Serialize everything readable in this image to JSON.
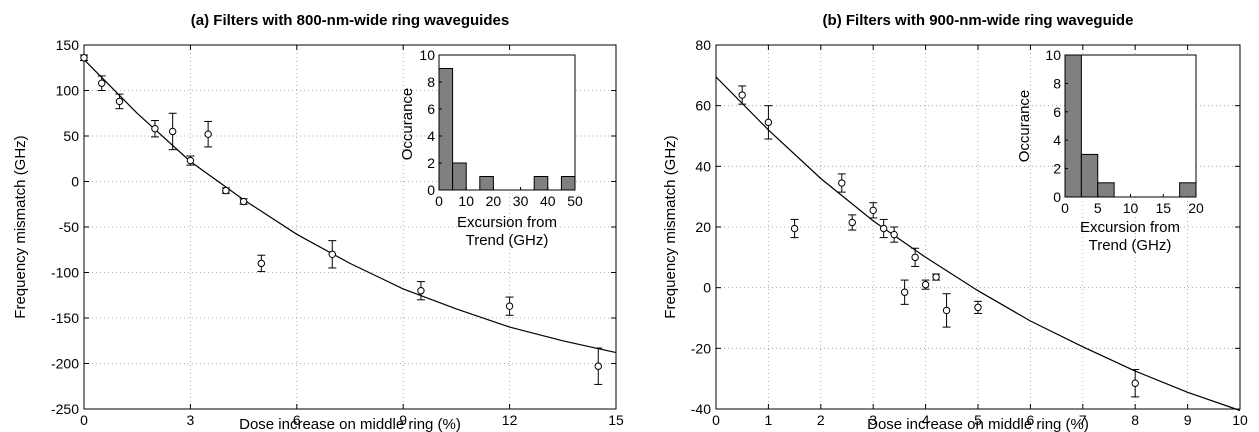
{
  "chart_data": [
    {
      "type": "scatter",
      "title": "(a) Filters with 800-nm-wide ring waveguides",
      "xlabel": "Dose increase on middle ring (%)",
      "ylabel": "Frequency mismatch (GHz)",
      "xlim": [
        0,
        15
      ],
      "ylim": [
        -250,
        150
      ],
      "xticks": [
        0,
        3,
        6,
        9,
        12,
        15
      ],
      "yticks": [
        -250,
        -200,
        -150,
        -100,
        -50,
        0,
        50,
        100,
        150
      ],
      "grid": true,
      "points": [
        {
          "x": 0,
          "y": 136,
          "err": 3
        },
        {
          "x": 0.5,
          "y": 108,
          "err": 8
        },
        {
          "x": 1,
          "y": 88,
          "err": 8
        },
        {
          "x": 2,
          "y": 58,
          "err": 9
        },
        {
          "x": 2.5,
          "y": 55,
          "err": 20
        },
        {
          "x": 3,
          "y": 23,
          "err": 5
        },
        {
          "x": 3.5,
          "y": 52,
          "err": 14
        },
        {
          "x": 4,
          "y": -10,
          "err": 3
        },
        {
          "x": 4.5,
          "y": -22,
          "err": 3
        },
        {
          "x": 5,
          "y": -90,
          "err": 9
        },
        {
          "x": 7,
          "y": -80,
          "err": 15
        },
        {
          "x": 9.5,
          "y": -120,
          "err": 10
        },
        {
          "x": 12,
          "y": -137,
          "err": 10
        },
        {
          "x": 14.5,
          "y": -203,
          "err": 20
        }
      ],
      "trend": {
        "x": [
          0,
          1.5,
          3,
          4.5,
          6,
          7.5,
          9,
          10.5,
          12,
          13.5,
          15
        ],
        "y": [
          134,
          75,
          22,
          -20,
          -58,
          -90,
          -118,
          -140,
          -160,
          -175,
          -188
        ]
      },
      "inset": {
        "type": "bar",
        "xlabel": "Excursion from Trend (GHz)",
        "ylabel": "Occurance",
        "xlim": [
          0,
          50
        ],
        "ylim": [
          0,
          10
        ],
        "xticks": [
          0,
          10,
          20,
          30,
          40,
          50
        ],
        "yticks": [
          0,
          2,
          4,
          6,
          8,
          10
        ],
        "bin_width": 5,
        "bin_starts": [
          0,
          5,
          15,
          35,
          45
        ],
        "counts": [
          9,
          2,
          1,
          1,
          1
        ]
      }
    },
    {
      "type": "scatter",
      "title": "(b) Filters with 900-nm-wide ring waveguide",
      "xlabel": "Dose increase on middle ring (%)",
      "ylabel": "Frequency mismatch (GHz)",
      "xlim": [
        0,
        10
      ],
      "ylim": [
        -40,
        80
      ],
      "xticks": [
        0,
        1,
        2,
        3,
        4,
        5,
        6,
        7,
        8,
        9,
        10
      ],
      "yticks": [
        -40,
        -20,
        0,
        20,
        40,
        60,
        80
      ],
      "grid": true,
      "points": [
        {
          "x": 0.5,
          "y": 63.5,
          "err": 3
        },
        {
          "x": 1,
          "y": 54.5,
          "err": 5.5
        },
        {
          "x": 1.5,
          "y": 19.5,
          "err": 3
        },
        {
          "x": 2.4,
          "y": 34.5,
          "err": 3
        },
        {
          "x": 2.6,
          "y": 21.5,
          "err": 2.5
        },
        {
          "x": 3,
          "y": 25.5,
          "err": 2.5
        },
        {
          "x": 3.2,
          "y": 19.5,
          "err": 3
        },
        {
          "x": 3.4,
          "y": 17.5,
          "err": 2.5
        },
        {
          "x": 3.6,
          "y": -1.5,
          "err": 4
        },
        {
          "x": 3.8,
          "y": 10,
          "err": 3
        },
        {
          "x": 4,
          "y": 1,
          "err": 1.5
        },
        {
          "x": 4.2,
          "y": 3.5,
          "err": 1
        },
        {
          "x": 4.4,
          "y": -7.5,
          "err": 5.5
        },
        {
          "x": 5,
          "y": -6.5,
          "err": 2
        },
        {
          "x": 8,
          "y": -31.5,
          "err": 4.5
        }
      ],
      "trend": {
        "x": [
          0,
          1,
          2,
          3,
          4,
          5,
          6,
          7,
          8,
          9,
          10
        ],
        "y": [
          69.5,
          52,
          36,
          22,
          10,
          -1,
          -11,
          -19.5,
          -27.5,
          -34.5,
          -40.5
        ]
      },
      "inset": {
        "type": "bar",
        "xlabel": "Excursion from Trend (GHz)",
        "ylabel": "Occurance",
        "xlim": [
          0,
          20
        ],
        "ylim": [
          0,
          10
        ],
        "xticks": [
          0,
          5,
          10,
          15,
          20
        ],
        "yticks": [
          0,
          2,
          4,
          6,
          8,
          10
        ],
        "bin_width": 2.5,
        "bin_starts": [
          0,
          2.5,
          5,
          17.5
        ],
        "counts": [
          10,
          3,
          1,
          1
        ]
      }
    }
  ]
}
